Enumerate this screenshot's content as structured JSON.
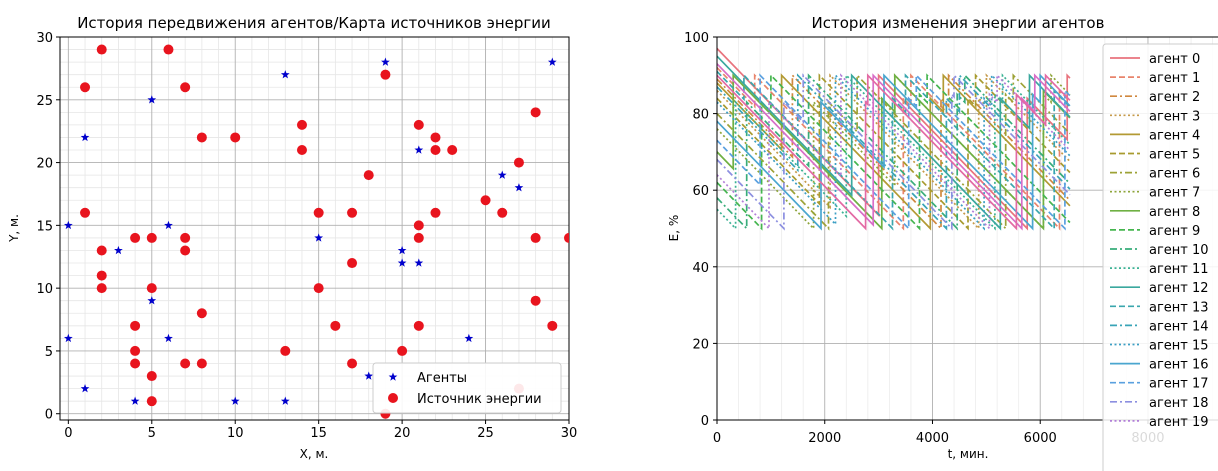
{
  "chart_data": [
    {
      "type": "scatter",
      "title": "История передвижения агентов/Карта источников энергии",
      "xlabel": "X, м.",
      "ylabel": "Y, м.",
      "xlim": [
        -0.5,
        30
      ],
      "ylim": [
        -0.5,
        30
      ],
      "xticks": [
        0,
        5,
        10,
        15,
        20,
        25,
        30
      ],
      "yticks": [
        0,
        5,
        10,
        15,
        20,
        25,
        30
      ],
      "grid": true,
      "minor_grid": true,
      "legend_position": "lower-right",
      "series": [
        {
          "name": "Агенты",
          "marker": "star",
          "color": "#0000cc",
          "points": [
            [
              0,
              15
            ],
            [
              0,
              6
            ],
            [
              1,
              22
            ],
            [
              1,
              2
            ],
            [
              3,
              13
            ],
            [
              4,
              1
            ],
            [
              5,
              25
            ],
            [
              5,
              9
            ],
            [
              6,
              15
            ],
            [
              6,
              6
            ],
            [
              10,
              1
            ],
            [
              13,
              27
            ],
            [
              13,
              1
            ],
            [
              15,
              14
            ],
            [
              18,
              3
            ],
            [
              19,
              28
            ],
            [
              20,
              13
            ],
            [
              20,
              12
            ],
            [
              21,
              21
            ],
            [
              21,
              12
            ],
            [
              24,
              6
            ],
            [
              26,
              19
            ],
            [
              27,
              18
            ],
            [
              29,
              28
            ]
          ]
        },
        {
          "name": "Источник энергии",
          "marker": "circle",
          "color": "#e8141e",
          "points": [
            [
              1,
              26
            ],
            [
              1,
              16
            ],
            [
              2,
              29
            ],
            [
              2,
              13
            ],
            [
              2,
              11
            ],
            [
              2,
              10
            ],
            [
              4,
              14
            ],
            [
              4,
              7
            ],
            [
              4,
              5
            ],
            [
              4,
              4
            ],
            [
              5,
              14
            ],
            [
              5,
              10
            ],
            [
              5,
              3
            ],
            [
              5,
              1
            ],
            [
              6,
              29
            ],
            [
              7,
              26
            ],
            [
              7,
              14
            ],
            [
              7,
              13
            ],
            [
              7,
              4
            ],
            [
              8,
              22
            ],
            [
              8,
              8
            ],
            [
              8,
              4
            ],
            [
              10,
              22
            ],
            [
              13,
              5
            ],
            [
              14,
              23
            ],
            [
              14,
              21
            ],
            [
              15,
              16
            ],
            [
              15,
              10
            ],
            [
              16,
              7
            ],
            [
              17,
              16
            ],
            [
              17,
              12
            ],
            [
              17,
              4
            ],
            [
              18,
              19
            ],
            [
              19,
              27
            ],
            [
              19,
              0
            ],
            [
              20,
              5
            ],
            [
              21,
              23
            ],
            [
              21,
              15
            ],
            [
              21,
              14
            ],
            [
              21,
              7
            ],
            [
              22,
              22
            ],
            [
              22,
              21
            ],
            [
              22,
              16
            ],
            [
              23,
              21
            ],
            [
              25,
              17
            ],
            [
              26,
              16
            ],
            [
              27,
              20
            ],
            [
              27,
              2
            ],
            [
              28,
              24
            ],
            [
              28,
              14
            ],
            [
              28,
              9
            ],
            [
              29,
              7
            ],
            [
              30,
              14
            ]
          ]
        }
      ]
    },
    {
      "type": "line",
      "title": "История изменения энергии агентов",
      "xlabel": "t, мин.",
      "ylabel": "E, %",
      "xlim": [
        0,
        9300
      ],
      "ylim": [
        0,
        100
      ],
      "xticks": [
        0,
        2000,
        4000,
        6000,
        8000
      ],
      "yticks": [
        0,
        20,
        40,
        60,
        80,
        100
      ],
      "grid": true,
      "legend_position": "right",
      "series": [
        {
          "name": "агент 0",
          "color": "#e8737d",
          "dash": "solid",
          "start": 97,
          "resets": [
            3000,
            6500
          ],
          "end": 6550
        },
        {
          "name": "агент 1",
          "color": "#e8846c",
          "dash": "dashed",
          "start": 92,
          "resets": [
            700,
            3600
          ],
          "end": 6550
        },
        {
          "name": "агент 2",
          "color": "#d0883f",
          "dash": "dashdot",
          "start": 89,
          "resets": [
            1400,
            4300
          ],
          "end": 6550
        },
        {
          "name": "агент 3",
          "color": "#c59a4a",
          "dash": "dotted",
          "start": 86,
          "resets": [
            2100,
            5000
          ],
          "end": 6550
        },
        {
          "name": "агент 4",
          "color": "#b39a33",
          "dash": "solid",
          "start": 88,
          "resets": [
            1200,
            4200
          ],
          "end": 6550
        },
        {
          "name": "агент 5",
          "color": "#a89b2f",
          "dash": "dashed",
          "start": 84,
          "resets": [
            1900,
            4800
          ],
          "end": 6550
        },
        {
          "name": "агент 6",
          "color": "#9da236",
          "dash": "dashdot",
          "start": 80,
          "resets": [
            2600,
            5500
          ],
          "end": 6550
        },
        {
          "name": "агент 7",
          "color": "#8ea53a",
          "dash": "dotted",
          "start": 76,
          "resets": [
            3300,
            6200
          ],
          "end": 6550
        },
        {
          "name": "агент 8",
          "color": "#6fb043",
          "dash": "solid",
          "start": 70,
          "resets": [
            300,
            3300
          ],
          "end": 6550
        },
        {
          "name": "агент 9",
          "color": "#45b54f",
          "dash": "dashed",
          "start": 62,
          "resets": [
            1000,
            3900
          ],
          "end": 6550
        },
        {
          "name": "агент 10",
          "color": "#38ad7a",
          "dash": "dashdot",
          "start": 58,
          "resets": [
            1700,
            4600
          ],
          "end": 6550
        },
        {
          "name": "агент 11",
          "color": "#3bb294",
          "dash": "dotted",
          "start": 55,
          "resets": [
            2400,
            5300
          ],
          "end": 6550
        },
        {
          "name": "агент 12",
          "color": "#3aa89e",
          "dash": "solid",
          "start": 95,
          "resets": [
            2500,
            5800
          ],
          "end": 6550
        },
        {
          "name": "агент 13",
          "color": "#3aa6ad",
          "dash": "dashed",
          "start": 91,
          "resets": [
            500,
            3500
          ],
          "end": 6550
        },
        {
          "name": "агент 14",
          "color": "#39a4b7",
          "dash": "dashdot",
          "start": 87,
          "resets": [
            1500,
            4500
          ],
          "end": 6550
        },
        {
          "name": "агент 15",
          "color": "#3c9fc4",
          "dash": "dotted",
          "start": 83,
          "resets": [
            2200,
            5100
          ],
          "end": 6550
        },
        {
          "name": "агент 16",
          "color": "#4aa6cf",
          "dash": "solid",
          "start": 78,
          "resets": [
            3100,
            6000
          ],
          "end": 6550
        },
        {
          "name": "агент 17",
          "color": "#5aa0df",
          "dash": "dashed",
          "start": 73,
          "resets": [
            800,
            3700
          ],
          "end": 6550
        },
        {
          "name": "агент 18",
          "color": "#8c8fe0",
          "dash": "dashdot",
          "start": 68,
          "resets": [
            1600,
            4400
          ],
          "end": 6550
        },
        {
          "name": "агент 19",
          "color": "#b27fd8",
          "dash": "dotted",
          "start": 64,
          "resets": [
            2300,
            5200
          ],
          "end": 6550
        },
        {
          "name": "",
          "color": "#d86ec8",
          "dash": "solid",
          "start": 93,
          "resets": [
            2900,
            5900
          ],
          "end": 6550
        },
        {
          "name": "",
          "color": "#e36aa4",
          "dash": "solid",
          "start": 90,
          "resets": [
            2800,
            6100
          ],
          "end": 6550
        }
      ]
    }
  ]
}
